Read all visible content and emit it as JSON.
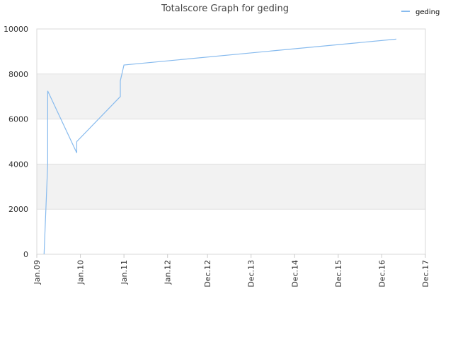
{
  "chart_data": {
    "type": "line",
    "title": "Totalscore Graph for geding",
    "x": [
      "2009-03",
      "2009-04",
      "2009-04",
      "2009-04",
      "2009-12",
      "2009-12",
      "2010-12",
      "2010-12",
      "2011-01",
      "2017-04"
    ],
    "series": [
      {
        "name": "geding",
        "color": "#88bbee",
        "values": [
          0,
          4000,
          7000,
          7250,
          4500,
          5000,
          7000,
          7700,
          8400,
          9550
        ]
      }
    ],
    "xlim": [
      "2009-01",
      "2017-12"
    ],
    "xticks": [
      {
        "value": "2009-01",
        "label": "Jan.09"
      },
      {
        "value": "2010-01",
        "label": "Jan.10"
      },
      {
        "value": "2011-01",
        "label": "Jan.11"
      },
      {
        "value": "2012-01",
        "label": "Jan.12"
      },
      {
        "value": "2012-12",
        "label": "Dec.12"
      },
      {
        "value": "2013-12",
        "label": "Dec.13"
      },
      {
        "value": "2014-12",
        "label": "Dec.14"
      },
      {
        "value": "2015-12",
        "label": "Dec.15"
      },
      {
        "value": "2016-12",
        "label": "Dec.16"
      },
      {
        "value": "2017-12",
        "label": "Dec.17"
      }
    ],
    "ylim": [
      0,
      10000
    ],
    "yticks": [
      0,
      2000,
      4000,
      6000,
      8000,
      10000
    ],
    "grid": true,
    "legend": "top-right"
  }
}
